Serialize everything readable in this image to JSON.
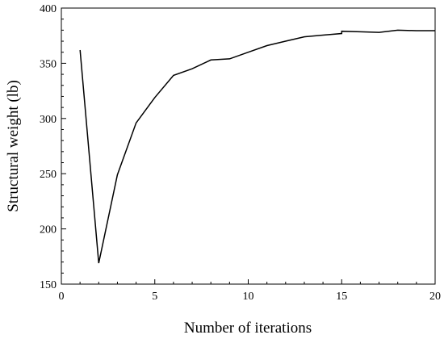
{
  "chart_data": {
    "type": "line",
    "title": "",
    "xlabel": "Number of iterations",
    "ylabel": "Structural weight (lb)",
    "xlim": [
      0,
      20
    ],
    "ylim": [
      150,
      400
    ],
    "xticks": [
      0,
      5,
      10,
      15,
      20
    ],
    "yticks": [
      150,
      200,
      250,
      300,
      350,
      400
    ],
    "x_minor_step": 1,
    "y_minor_step": 10,
    "grid": false,
    "legend": "none",
    "series": [
      {
        "color": "#000000",
        "x": [
          1,
          2,
          3,
          4,
          5,
          6,
          7,
          8,
          9,
          10,
          11,
          12,
          13,
          14,
          15,
          15,
          16,
          17,
          18,
          19,
          20
        ],
        "y": [
          362,
          169,
          249,
          296,
          319,
          339,
          345,
          353,
          354,
          360,
          366,
          370,
          374,
          375.5,
          377,
          379,
          378.5,
          378,
          380,
          379.5,
          379.5
        ]
      }
    ]
  }
}
